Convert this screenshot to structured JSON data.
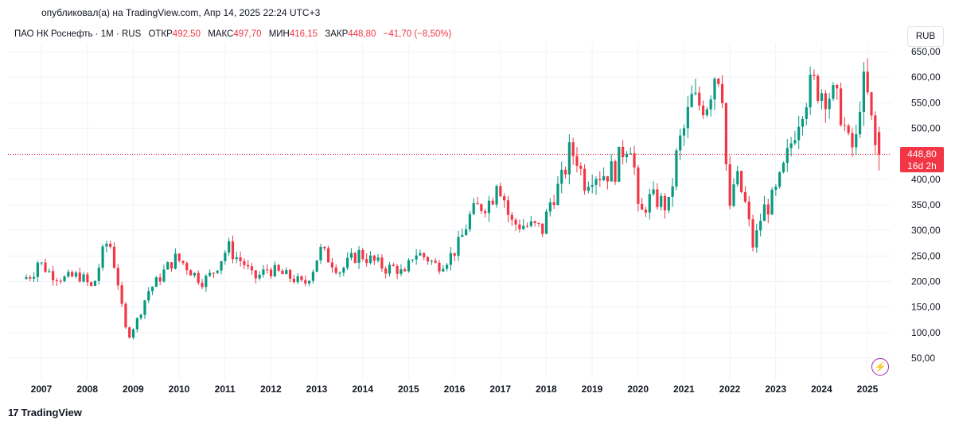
{
  "header": {
    "published": "опубликовал(а) на TradingView.com, Апр 14, 2025 22:24 UTC+3"
  },
  "legend": {
    "symbol": "ПАО НК Роснефть · 1M · RUS",
    "open_label": "ОТКР",
    "open_value": "492,50",
    "high_label": "МАКС",
    "high_value": "497,70",
    "low_label": "МИН",
    "low_value": "416,15",
    "close_label": "ЗАКР",
    "close_value": "448,80",
    "change": "−41,70 (−8,50%)"
  },
  "currency_button": "RUB",
  "price_badge": {
    "price": "448,80",
    "countdown": "16d 2h"
  },
  "branding": {
    "logo_text": "TradingView",
    "logo_mark": "17"
  },
  "colors": {
    "up": "#089981",
    "down": "#f23645",
    "grid": "#f0f3fa",
    "current_line": "#f23645"
  },
  "chart_data": {
    "type": "candlestick",
    "interval": "1M",
    "y_ticks": [
      "650,00",
      "600,00",
      "550,00",
      "500,00",
      "450,00",
      "400,00",
      "350,00",
      "300,00",
      "250,00",
      "200,00",
      "150,00",
      "100,00",
      "50,00"
    ],
    "y_tick_values": [
      650,
      600,
      550,
      500,
      450,
      400,
      350,
      300,
      250,
      200,
      150,
      100,
      50
    ],
    "x_ticks": [
      "2007",
      "2008",
      "2009",
      "2010",
      "2011",
      "2012",
      "2013",
      "2014",
      "2015",
      "2016",
      "2017",
      "2018",
      "2019",
      "2020",
      "2021",
      "2022",
      "2023",
      "2024",
      "2025"
    ],
    "ylim": [
      0,
      660
    ],
    "current_price": 448.8,
    "yearly_path": [
      {
        "year": 2006.67,
        "v": 205
      },
      {
        "year": 2006.9,
        "v": 215
      },
      {
        "year": 2007.0,
        "v": 240
      },
      {
        "year": 2007.3,
        "v": 215
      },
      {
        "year": 2007.6,
        "v": 205
      },
      {
        "year": 2007.9,
        "v": 212
      },
      {
        "year": 2008.0,
        "v": 205
      },
      {
        "year": 2008.2,
        "v": 185
      },
      {
        "year": 2008.4,
        "v": 250
      },
      {
        "year": 2008.55,
        "v": 285
      },
      {
        "year": 2008.75,
        "v": 200
      },
      {
        "year": 2008.9,
        "v": 110
      },
      {
        "year": 2009.0,
        "v": 95
      },
      {
        "year": 2009.2,
        "v": 130
      },
      {
        "year": 2009.4,
        "v": 180
      },
      {
        "year": 2009.6,
        "v": 200
      },
      {
        "year": 2009.8,
        "v": 225
      },
      {
        "year": 2010.0,
        "v": 245
      },
      {
        "year": 2010.2,
        "v": 235
      },
      {
        "year": 2010.4,
        "v": 215
      },
      {
        "year": 2010.6,
        "v": 200
      },
      {
        "year": 2010.8,
        "v": 215
      },
      {
        "year": 2011.0,
        "v": 245
      },
      {
        "year": 2011.15,
        "v": 268
      },
      {
        "year": 2011.3,
        "v": 250
      },
      {
        "year": 2011.5,
        "v": 235
      },
      {
        "year": 2011.7,
        "v": 205
      },
      {
        "year": 2011.9,
        "v": 215
      },
      {
        "year": 2012.0,
        "v": 225
      },
      {
        "year": 2012.3,
        "v": 215
      },
      {
        "year": 2012.6,
        "v": 205
      },
      {
        "year": 2012.8,
        "v": 192
      },
      {
        "year": 2013.0,
        "v": 225
      },
      {
        "year": 2013.15,
        "v": 262
      },
      {
        "year": 2013.4,
        "v": 240
      },
      {
        "year": 2013.6,
        "v": 220
      },
      {
        "year": 2013.8,
        "v": 240
      },
      {
        "year": 2014.0,
        "v": 255
      },
      {
        "year": 2014.3,
        "v": 240
      },
      {
        "year": 2014.6,
        "v": 225
      },
      {
        "year": 2014.8,
        "v": 228
      },
      {
        "year": 2015.0,
        "v": 210
      },
      {
        "year": 2015.2,
        "v": 258
      },
      {
        "year": 2015.5,
        "v": 245
      },
      {
        "year": 2015.7,
        "v": 230
      },
      {
        "year": 2016.0,
        "v": 250
      },
      {
        "year": 2016.2,
        "v": 275
      },
      {
        "year": 2016.4,
        "v": 325
      },
      {
        "year": 2016.6,
        "v": 345
      },
      {
        "year": 2016.9,
        "v": 360
      },
      {
        "year": 2017.0,
        "v": 405
      },
      {
        "year": 2017.15,
        "v": 370
      },
      {
        "year": 2017.3,
        "v": 315
      },
      {
        "year": 2017.6,
        "v": 310
      },
      {
        "year": 2017.9,
        "v": 305
      },
      {
        "year": 2018.0,
        "v": 300
      },
      {
        "year": 2018.2,
        "v": 365
      },
      {
        "year": 2018.4,
        "v": 390
      },
      {
        "year": 2018.6,
        "v": 455
      },
      {
        "year": 2018.75,
        "v": 445
      },
      {
        "year": 2018.9,
        "v": 395
      },
      {
        "year": 2019.1,
        "v": 415
      },
      {
        "year": 2019.3,
        "v": 410
      },
      {
        "year": 2019.6,
        "v": 420
      },
      {
        "year": 2019.8,
        "v": 470
      },
      {
        "year": 2019.95,
        "v": 475
      },
      {
        "year": 2020.1,
        "v": 320
      },
      {
        "year": 2020.3,
        "v": 360
      },
      {
        "year": 2020.5,
        "v": 360
      },
      {
        "year": 2020.75,
        "v": 345
      },
      {
        "year": 2020.95,
        "v": 460
      },
      {
        "year": 2021.1,
        "v": 500
      },
      {
        "year": 2021.25,
        "v": 555
      },
      {
        "year": 2021.45,
        "v": 545
      },
      {
        "year": 2021.6,
        "v": 555
      },
      {
        "year": 2021.8,
        "v": 625
      },
      {
        "year": 2021.95,
        "v": 565
      },
      {
        "year": 2022.05,
        "v": 310
      },
      {
        "year": 2022.2,
        "v": 410
      },
      {
        "year": 2022.4,
        "v": 360
      },
      {
        "year": 2022.6,
        "v": 265
      },
      {
        "year": 2022.8,
        "v": 340
      },
      {
        "year": 2022.95,
        "v": 350
      },
      {
        "year": 2023.1,
        "v": 375
      },
      {
        "year": 2023.3,
        "v": 430
      },
      {
        "year": 2023.5,
        "v": 500
      },
      {
        "year": 2023.7,
        "v": 560
      },
      {
        "year": 2023.9,
        "v": 585
      },
      {
        "year": 2024.1,
        "v": 575
      },
      {
        "year": 2024.3,
        "v": 565
      },
      {
        "year": 2024.5,
        "v": 535
      },
      {
        "year": 2024.7,
        "v": 455
      },
      {
        "year": 2024.85,
        "v": 475
      },
      {
        "year": 2024.95,
        "v": 595
      },
      {
        "year": 2025.1,
        "v": 555
      },
      {
        "year": 2025.2,
        "v": 490
      },
      {
        "year": 2025.28,
        "v": 448.8
      }
    ]
  }
}
